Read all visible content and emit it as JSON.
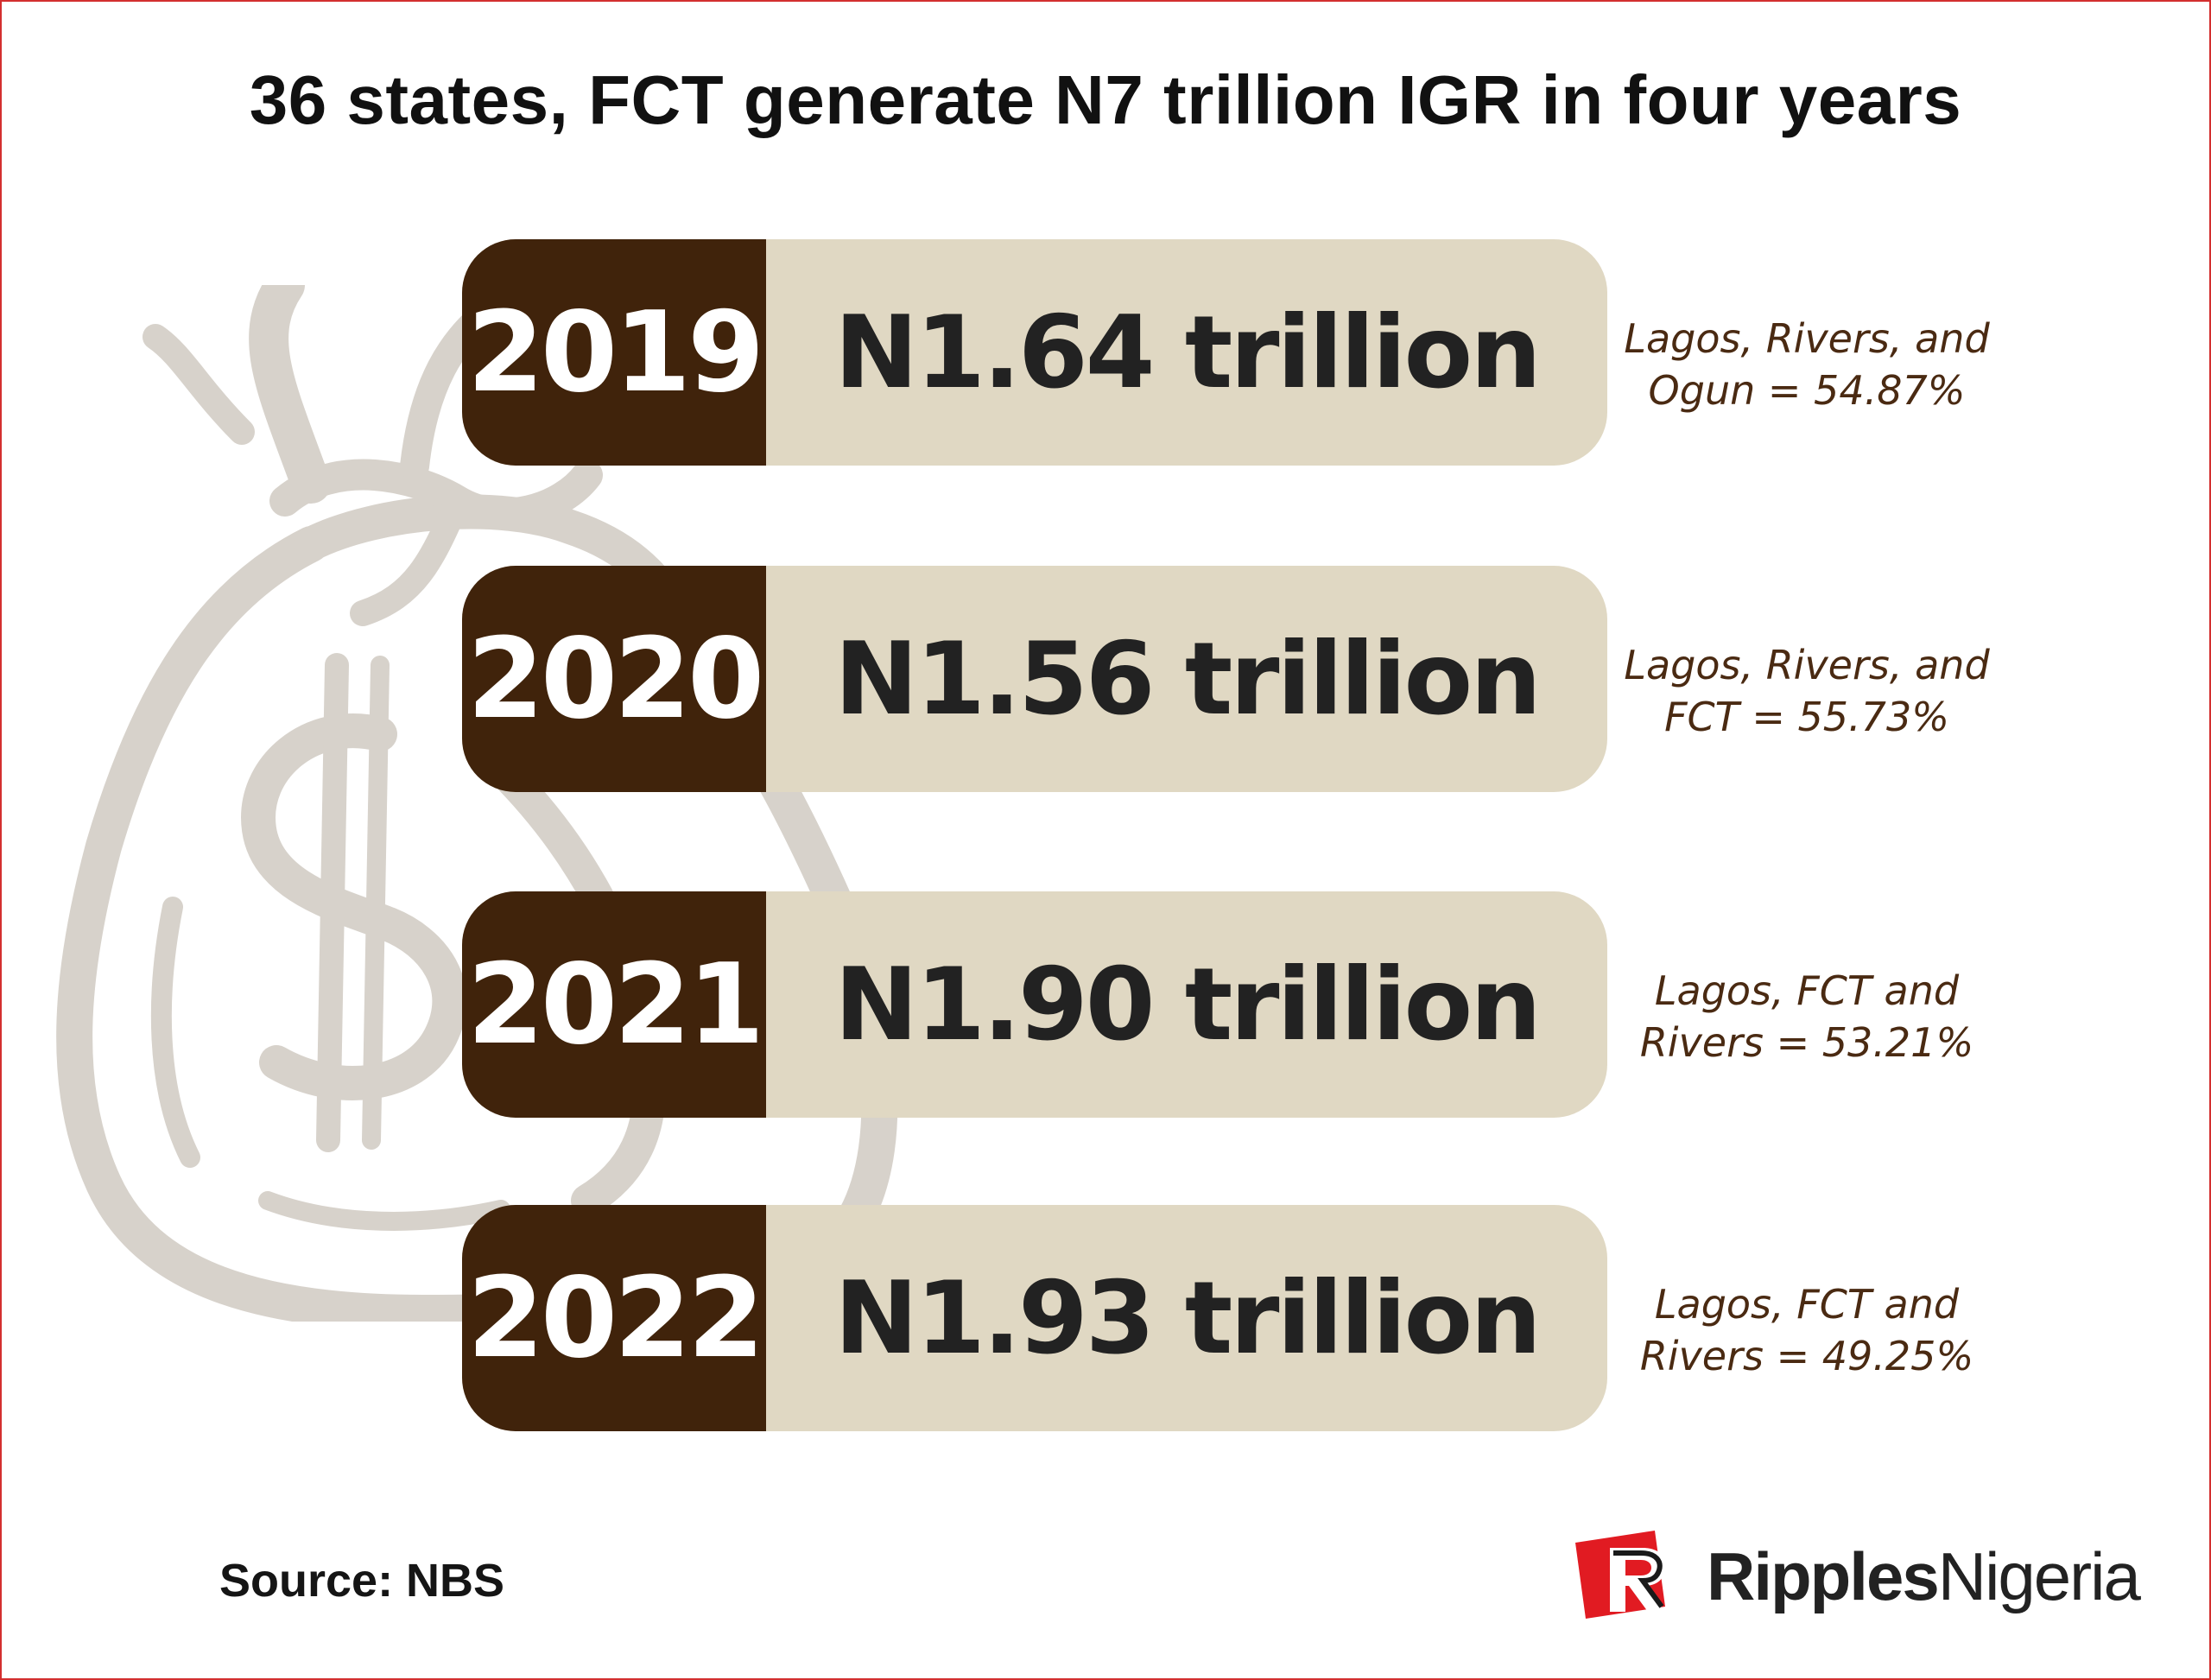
{
  "title": "36 states, FCT generate N7 trillion IGR in four years",
  "rows": [
    {
      "year": "2019",
      "amount": "N1.64 trillion",
      "note_line1": "Lagos, Rivers, and",
      "note_line2": "Ogun = 54.87%"
    },
    {
      "year": "2020",
      "amount": "N1.56 trillion",
      "note_line1": "Lagos, Rivers, and",
      "note_line2": "FCT = 55.73%"
    },
    {
      "year": "2021",
      "amount": "N1.90 trillion",
      "note_line1": "Lagos, FCT and",
      "note_line2": "Rivers = 53.21%"
    },
    {
      "year": "2022",
      "amount": "N1.93 trillion",
      "note_line1": "Lagos, FCT and",
      "note_line2": "Rivers = 49.25%"
    }
  ],
  "source": "Source: NBS",
  "logo": {
    "bold": "Ripples",
    "light": "Nigeria"
  },
  "colors": {
    "year_block": "#40230b",
    "pill": "#e0d8c3",
    "note_text": "#4a2a12",
    "background_art": "#d7d2cb",
    "logo_red": "#e11b22",
    "frame": "#d32f2f"
  },
  "icons": [
    "money-bag-dollar-icon",
    "ripples-logo-icon"
  ]
}
